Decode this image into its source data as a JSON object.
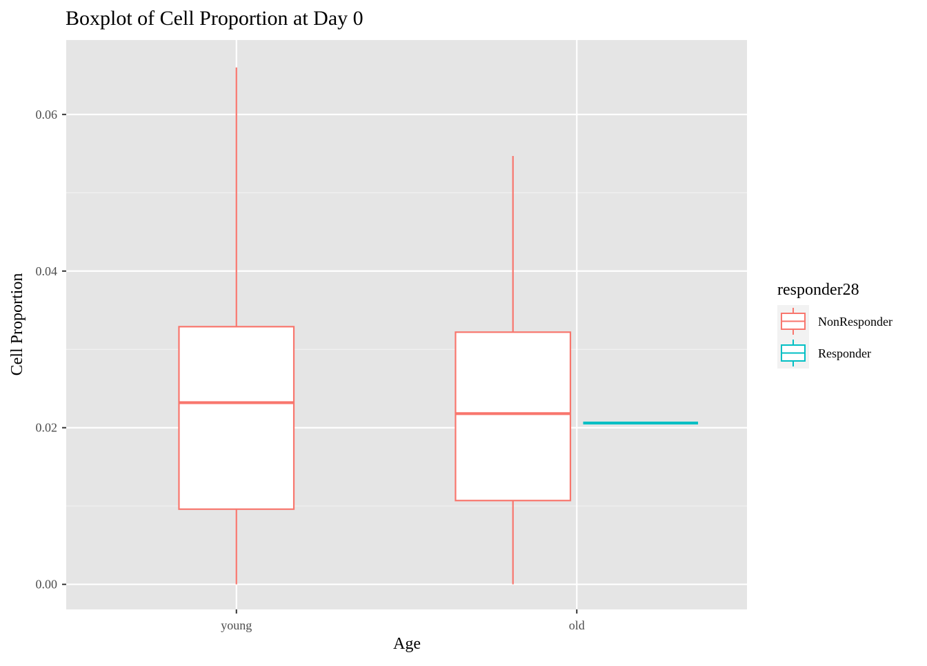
{
  "chart_data": {
    "type": "boxplot",
    "title": "Boxplot of Cell Proportion at Day 0",
    "xlabel": "Age",
    "ylabel": "Cell Proportion",
    "categories": [
      "young",
      "old"
    ],
    "ylim": [
      -0.0032,
      0.0695
    ],
    "yticks": [
      0.0,
      0.02,
      0.04,
      0.06
    ],
    "ytick_labels": [
      "0.00",
      "0.02",
      "0.04",
      "0.06"
    ],
    "grid": true,
    "legend": {
      "title": "responder28",
      "position": "right",
      "entries": [
        {
          "name": "NonResponder",
          "color": "#F8766D"
        },
        {
          "name": "Responder",
          "color": "#00BFC4"
        }
      ]
    },
    "series": [
      {
        "name": "NonResponder",
        "color": "#F8766D",
        "boxes": [
          {
            "category": "young",
            "min": 0.0,
            "q1": 0.0096,
            "median": 0.0232,
            "q3": 0.0329,
            "max": 0.066
          },
          {
            "category": "old",
            "min": 0.0,
            "q1": 0.0107,
            "median": 0.0218,
            "q3": 0.0322,
            "max": 0.0547
          }
        ]
      },
      {
        "name": "Responder",
        "color": "#00BFC4",
        "boxes": [
          {
            "category": "old",
            "min": 0.0206,
            "q1": 0.0206,
            "median": 0.0206,
            "q3": 0.0206,
            "max": 0.0206
          }
        ]
      }
    ]
  }
}
